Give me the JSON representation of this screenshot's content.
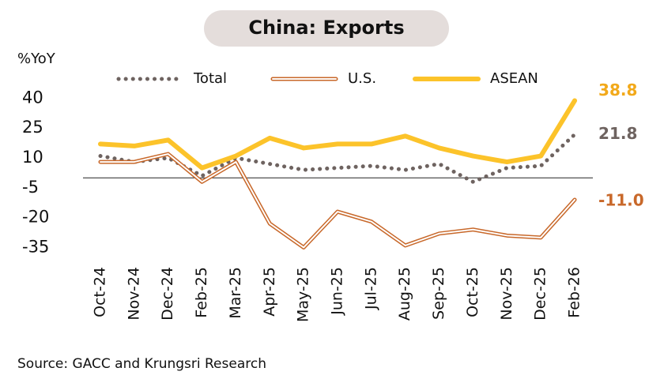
{
  "chart_data": {
    "type": "line",
    "title": "China: Exports",
    "y_label": "%YoY",
    "source": "Source: GACC and Krungsri Research",
    "categories": [
      "Oct-24",
      "Nov-24",
      "Dec-24",
      "Feb-25",
      "Mar-25",
      "Apr-25",
      "May-25",
      "Jun-25",
      "Jul-25",
      "Aug-25",
      "Sep-25",
      "Oct-25",
      "Nov-25",
      "Dec-25",
      "Feb-26"
    ],
    "ylim": [
      -38,
      42
    ],
    "yticks": [
      40,
      25,
      10,
      -5,
      -20,
      -35
    ],
    "series": [
      {
        "name": "Total",
        "color": "#6e6360",
        "style": "dotted",
        "values": [
          11,
          8,
          10,
          1,
          10,
          7,
          4,
          5,
          6,
          4,
          7,
          -2,
          5,
          6,
          21.8
        ],
        "value_labels": [
          null,
          null,
          null,
          null,
          null,
          null,
          null,
          null,
          null,
          null,
          null,
          null,
          null,
          null,
          "21.8"
        ]
      },
      {
        "name": "U.S.",
        "color": "#c8682a",
        "style": "double",
        "values": [
          8,
          8,
          12,
          -2,
          8,
          -23,
          -35,
          -17,
          -22,
          -34,
          -28,
          -26,
          -29,
          -30,
          -11
        ],
        "value_labels": [
          null,
          null,
          null,
          null,
          null,
          null,
          null,
          null,
          null,
          null,
          null,
          null,
          null,
          null,
          "-11.0"
        ]
      },
      {
        "name": "ASEAN",
        "color": "#fcc32a",
        "style": "solid",
        "values": [
          17,
          16,
          19,
          5,
          11,
          20,
          15,
          17,
          17,
          21,
          15,
          11,
          8,
          11,
          38.8
        ],
        "value_labels": [
          null,
          null,
          null,
          null,
          null,
          null,
          null,
          null,
          null,
          null,
          null,
          null,
          null,
          null,
          "38.8"
        ]
      }
    ]
  }
}
